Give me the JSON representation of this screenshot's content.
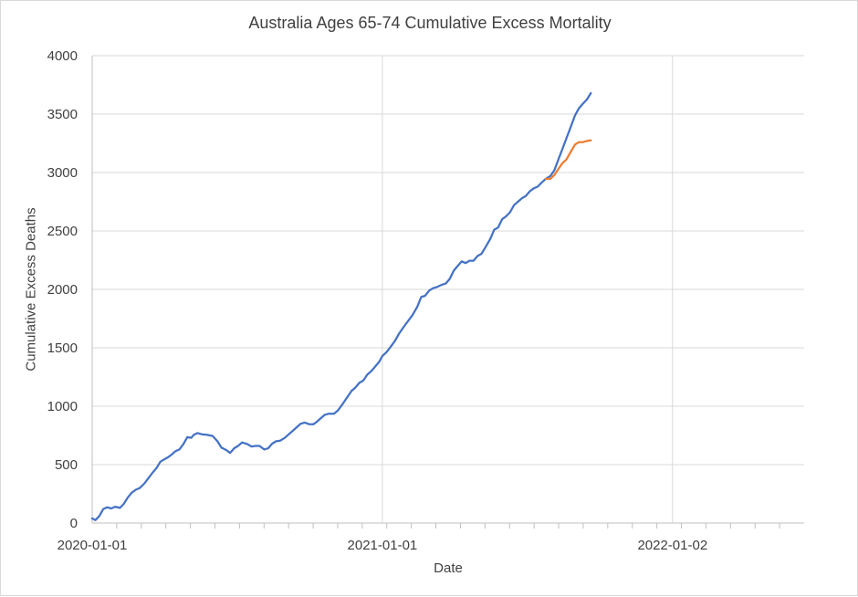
{
  "chart_data": {
    "type": "line",
    "title": "Australia Ages 65-74 Cumulative Excess Mortality",
    "xlabel": "Date",
    "ylabel": "Cumulative Excess Deaths",
    "ylim": [
      0,
      4000
    ],
    "yticks": [
      "0",
      "500",
      "1000",
      "1500",
      "2000",
      "2500",
      "3000",
      "3500",
      "4000"
    ],
    "xlim": [
      "2020-01-01",
      "2022-06-17"
    ],
    "xticks": [
      "2020-01-01",
      "2021-01-01",
      "2022-01-02"
    ],
    "grid": true,
    "legend": "none",
    "series": [
      {
        "color": "#4472C4",
        "points": [
          [
            "2020-01-01",
            40
          ],
          [
            "2020-01-05",
            25
          ],
          [
            "2020-01-10",
            60
          ],
          [
            "2020-01-15",
            120
          ],
          [
            "2020-01-20",
            135
          ],
          [
            "2020-01-25",
            125
          ],
          [
            "2020-01-30",
            140
          ],
          [
            "2020-02-05",
            130
          ],
          [
            "2020-02-10",
            165
          ],
          [
            "2020-02-15",
            220
          ],
          [
            "2020-02-20",
            260
          ],
          [
            "2020-02-25",
            285
          ],
          [
            "2020-03-01",
            300
          ],
          [
            "2020-03-07",
            340
          ],
          [
            "2020-03-12",
            385
          ],
          [
            "2020-03-17",
            430
          ],
          [
            "2020-03-22",
            470
          ],
          [
            "2020-03-27",
            525
          ],
          [
            "2020-04-01",
            545
          ],
          [
            "2020-04-05",
            560
          ],
          [
            "2020-04-10",
            585
          ],
          [
            "2020-04-15",
            615
          ],
          [
            "2020-04-20",
            630
          ],
          [
            "2020-04-25",
            675
          ],
          [
            "2020-04-30",
            735
          ],
          [
            "2020-05-05",
            730
          ],
          [
            "2020-05-08",
            755
          ],
          [
            "2020-05-13",
            770
          ],
          [
            "2020-05-18",
            760
          ],
          [
            "2020-05-25",
            755
          ],
          [
            "2020-06-01",
            745
          ],
          [
            "2020-06-07",
            700
          ],
          [
            "2020-06-12",
            645
          ],
          [
            "2020-06-18",
            625
          ],
          [
            "2020-06-23",
            600
          ],
          [
            "2020-06-28",
            640
          ],
          [
            "2020-07-03",
            660
          ],
          [
            "2020-07-08",
            690
          ],
          [
            "2020-07-15",
            675
          ],
          [
            "2020-07-20",
            655
          ],
          [
            "2020-07-25",
            660
          ],
          [
            "2020-07-30",
            660
          ],
          [
            "2020-08-05",
            630
          ],
          [
            "2020-08-10",
            640
          ],
          [
            "2020-08-15",
            680
          ],
          [
            "2020-08-20",
            700
          ],
          [
            "2020-08-25",
            705
          ],
          [
            "2020-08-31",
            730
          ],
          [
            "2020-09-05",
            760
          ],
          [
            "2020-09-10",
            790
          ],
          [
            "2020-09-15",
            820
          ],
          [
            "2020-09-20",
            850
          ],
          [
            "2020-09-25",
            860
          ],
          [
            "2020-10-01",
            845
          ],
          [
            "2020-10-06",
            845
          ],
          [
            "2020-10-10",
            865
          ],
          [
            "2020-10-15",
            895
          ],
          [
            "2020-10-20",
            925
          ],
          [
            "2020-10-25",
            935
          ],
          [
            "2020-11-01",
            935
          ],
          [
            "2020-11-06",
            965
          ],
          [
            "2020-11-12",
            1020
          ],
          [
            "2020-11-18",
            1080
          ],
          [
            "2020-11-23",
            1130
          ],
          [
            "2020-11-28",
            1160
          ],
          [
            "2020-12-03",
            1200
          ],
          [
            "2020-12-08",
            1220
          ],
          [
            "2020-12-13",
            1270
          ],
          [
            "2020-12-18",
            1300
          ],
          [
            "2020-12-23",
            1340
          ],
          [
            "2020-12-28",
            1380
          ],
          [
            "2021-01-01",
            1430
          ],
          [
            "2021-01-06",
            1460
          ],
          [
            "2021-01-11",
            1505
          ],
          [
            "2021-01-17",
            1560
          ],
          [
            "2021-01-22",
            1620
          ],
          [
            "2021-01-28",
            1680
          ],
          [
            "2021-02-02",
            1725
          ],
          [
            "2021-02-08",
            1780
          ],
          [
            "2021-02-14",
            1850
          ],
          [
            "2021-02-19",
            1935
          ],
          [
            "2021-02-24",
            1945
          ],
          [
            "2021-03-01",
            1990
          ],
          [
            "2021-03-06",
            2010
          ],
          [
            "2021-03-11",
            2020
          ],
          [
            "2021-03-17",
            2040
          ],
          [
            "2021-03-22",
            2050
          ],
          [
            "2021-03-27",
            2090
          ],
          [
            "2021-04-01",
            2160
          ],
          [
            "2021-04-06",
            2200
          ],
          [
            "2021-04-11",
            2240
          ],
          [
            "2021-04-16",
            2225
          ],
          [
            "2021-04-21",
            2245
          ],
          [
            "2021-04-26",
            2245
          ],
          [
            "2021-05-01",
            2285
          ],
          [
            "2021-05-06",
            2305
          ],
          [
            "2021-05-11",
            2360
          ],
          [
            "2021-05-17",
            2430
          ],
          [
            "2021-05-22",
            2510
          ],
          [
            "2021-05-27",
            2530
          ],
          [
            "2021-06-01",
            2600
          ],
          [
            "2021-06-06",
            2625
          ],
          [
            "2021-06-11",
            2660
          ],
          [
            "2021-06-16",
            2720
          ],
          [
            "2021-06-21",
            2750
          ],
          [
            "2021-06-26",
            2780
          ],
          [
            "2021-07-01",
            2800
          ],
          [
            "2021-07-06",
            2840
          ],
          [
            "2021-07-11",
            2865
          ],
          [
            "2021-07-16",
            2880
          ],
          [
            "2021-07-21",
            2915
          ],
          [
            "2021-07-26",
            2945
          ],
          [
            "2021-08-01",
            2970
          ],
          [
            "2021-08-06",
            3020
          ],
          [
            "2021-08-11",
            3110
          ],
          [
            "2021-08-16",
            3200
          ],
          [
            "2021-08-21",
            3290
          ],
          [
            "2021-08-26",
            3380
          ],
          [
            "2021-09-01",
            3490
          ],
          [
            "2021-09-06",
            3550
          ],
          [
            "2021-09-11",
            3590
          ],
          [
            "2021-09-16",
            3625
          ],
          [
            "2021-09-21",
            3680
          ]
        ]
      },
      {
        "color": "#ED7D31",
        "points": [
          [
            "2021-07-26",
            2945
          ],
          [
            "2021-08-01",
            2945
          ],
          [
            "2021-08-06",
            2980
          ],
          [
            "2021-08-11",
            3030
          ],
          [
            "2021-08-16",
            3080
          ],
          [
            "2021-08-21",
            3110
          ],
          [
            "2021-08-26",
            3170
          ],
          [
            "2021-09-01",
            3240
          ],
          [
            "2021-09-06",
            3260
          ],
          [
            "2021-09-11",
            3260
          ],
          [
            "2021-09-16",
            3270
          ],
          [
            "2021-09-21",
            3275
          ]
        ]
      }
    ]
  }
}
